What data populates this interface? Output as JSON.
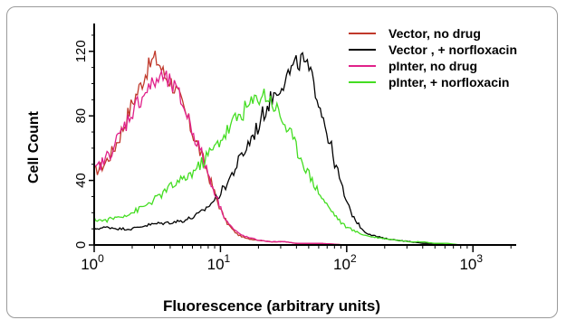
{
  "chart_data": {
    "type": "line",
    "xlabel": "Fluorescence (arbitrary units)",
    "ylabel": "Cell Count",
    "x_scale": "log",
    "xlim": [
      1,
      2200
    ],
    "ylim": [
      0,
      135
    ],
    "y_ticks": [
      0,
      40,
      80,
      120
    ],
    "x_ticks": [
      {
        "value": 1,
        "base": "10",
        "exp": "0"
      },
      {
        "value": 10,
        "base": "10",
        "exp": "1"
      },
      {
        "value": 100,
        "base": "10",
        "exp": "2"
      },
      {
        "value": 1000,
        "base": "10",
        "exp": "3"
      }
    ],
    "legend_position": "top-right",
    "grid": false,
    "series": [
      {
        "name": "Vector, no drug",
        "color": "#c0392b",
        "points": [
          [
            1,
            45
          ],
          [
            1.2,
            50
          ],
          [
            1.4,
            58
          ],
          [
            1.6,
            68
          ],
          [
            1.8,
            78
          ],
          [
            2,
            88
          ],
          [
            2.3,
            98
          ],
          [
            2.6,
            108
          ],
          [
            3,
            116
          ],
          [
            3.3,
            112
          ],
          [
            3.6,
            105
          ],
          [
            4,
            102
          ],
          [
            4.5,
            95
          ],
          [
            5,
            86
          ],
          [
            5.6,
            76
          ],
          [
            6.3,
            66
          ],
          [
            7.1,
            55
          ],
          [
            8,
            44
          ],
          [
            9,
            32
          ],
          [
            10,
            22
          ],
          [
            11.2,
            14
          ],
          [
            12.6,
            9
          ],
          [
            14,
            6
          ],
          [
            16,
            4
          ],
          [
            20,
            3
          ],
          [
            25,
            2
          ],
          [
            32,
            2
          ],
          [
            40,
            1
          ],
          [
            63,
            1
          ],
          [
            100,
            0
          ],
          [
            2000,
            0
          ]
        ]
      },
      {
        "name": "Vector , + norfloxacin",
        "color": "#000000",
        "points": [
          [
            1,
            10
          ],
          [
            1.3,
            11
          ],
          [
            1.6,
            10
          ],
          [
            2,
            10
          ],
          [
            2.5,
            12
          ],
          [
            3,
            13
          ],
          [
            4,
            14
          ],
          [
            5,
            15
          ],
          [
            6,
            17
          ],
          [
            7,
            20
          ],
          [
            8,
            24
          ],
          [
            9,
            28
          ],
          [
            10,
            32
          ],
          [
            11.2,
            38
          ],
          [
            12.6,
            45
          ],
          [
            14,
            52
          ],
          [
            16,
            60
          ],
          [
            18,
            68
          ],
          [
            20,
            74
          ],
          [
            22,
            82
          ],
          [
            25,
            90
          ],
          [
            28,
            96
          ],
          [
            32,
            102
          ],
          [
            36,
            108
          ],
          [
            40,
            112
          ],
          [
            45,
            115
          ],
          [
            50,
            108
          ],
          [
            56,
            98
          ],
          [
            63,
            84
          ],
          [
            71,
            68
          ],
          [
            80,
            52
          ],
          [
            90,
            38
          ],
          [
            100,
            26
          ],
          [
            112,
            18
          ],
          [
            126,
            12
          ],
          [
            140,
            8
          ],
          [
            160,
            6
          ],
          [
            200,
            4
          ],
          [
            250,
            3
          ],
          [
            320,
            2
          ],
          [
            400,
            1
          ],
          [
            500,
            1
          ],
          [
            630,
            0
          ],
          [
            2000,
            0
          ]
        ]
      },
      {
        "name": "pInter, no drug",
        "color": "#e0218a",
        "points": [
          [
            1,
            46
          ],
          [
            1.2,
            52
          ],
          [
            1.4,
            60
          ],
          [
            1.6,
            68
          ],
          [
            1.8,
            76
          ],
          [
            2,
            83
          ],
          [
            2.3,
            90
          ],
          [
            2.6,
            96
          ],
          [
            3,
            100
          ],
          [
            3.3,
            104
          ],
          [
            3.6,
            103
          ],
          [
            4,
            100
          ],
          [
            4.5,
            95
          ],
          [
            5,
            88
          ],
          [
            5.6,
            78
          ],
          [
            6.3,
            67
          ],
          [
            7.1,
            56
          ],
          [
            8,
            44
          ],
          [
            9,
            33
          ],
          [
            10,
            23
          ],
          [
            11.2,
            15
          ],
          [
            12.6,
            10
          ],
          [
            14,
            7
          ],
          [
            16,
            5
          ],
          [
            20,
            3
          ],
          [
            25,
            2
          ],
          [
            32,
            2
          ],
          [
            40,
            1
          ],
          [
            63,
            1
          ],
          [
            100,
            0
          ],
          [
            2000,
            0
          ]
        ]
      },
      {
        "name": "pInter, + norfloxacin",
        "color": "#44dd22",
        "points": [
          [
            1,
            16
          ],
          [
            1.2,
            15
          ],
          [
            1.5,
            17
          ],
          [
            2,
            20
          ],
          [
            2.5,
            24
          ],
          [
            3,
            28
          ],
          [
            3.5,
            32
          ],
          [
            4,
            36
          ],
          [
            5,
            40
          ],
          [
            6,
            45
          ],
          [
            7,
            50
          ],
          [
            8,
            56
          ],
          [
            9,
            60
          ],
          [
            10,
            66
          ],
          [
            11.2,
            70
          ],
          [
            12.6,
            76
          ],
          [
            14,
            80
          ],
          [
            16,
            85
          ],
          [
            18,
            88
          ],
          [
            20,
            92
          ],
          [
            22,
            94
          ],
          [
            25,
            90
          ],
          [
            28,
            84
          ],
          [
            32,
            76
          ],
          [
            36,
            68
          ],
          [
            40,
            60
          ],
          [
            45,
            52
          ],
          [
            50,
            44
          ],
          [
            56,
            37
          ],
          [
            63,
            30
          ],
          [
            71,
            24
          ],
          [
            80,
            19
          ],
          [
            90,
            14
          ],
          [
            100,
            11
          ],
          [
            120,
            8
          ],
          [
            140,
            6
          ],
          [
            160,
            5
          ],
          [
            200,
            4
          ],
          [
            250,
            3
          ],
          [
            320,
            2
          ],
          [
            400,
            2
          ],
          [
            500,
            1
          ],
          [
            630,
            1
          ],
          [
            800,
            0
          ],
          [
            2000,
            0
          ]
        ]
      }
    ]
  }
}
